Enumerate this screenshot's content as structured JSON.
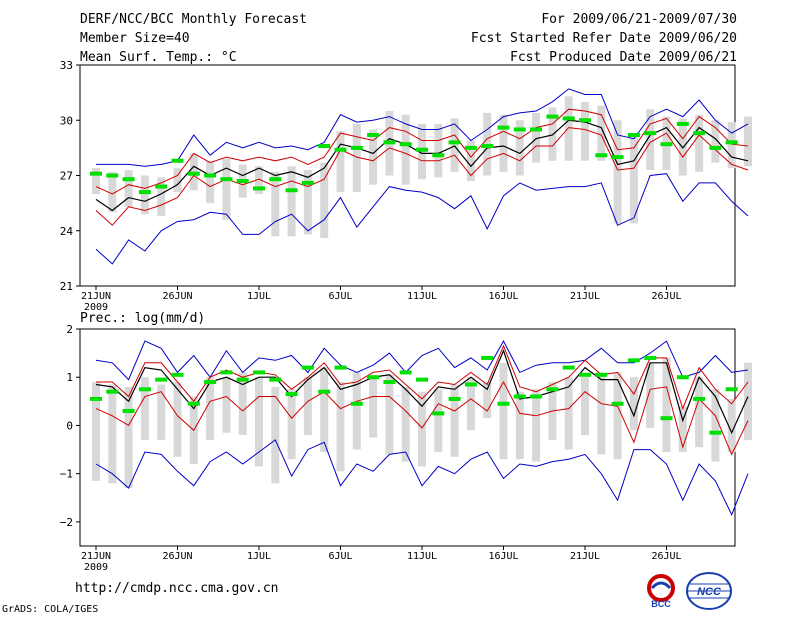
{
  "header": {
    "title": "DERF/NCC/BCC Monthly Forecast",
    "member_size": "Member Size=40",
    "variable": "Mean Surf. Temp.: °C",
    "period": "For 2009/06/21-2009/07/30",
    "started": "Fcst Started Refer Date 2009/06/20",
    "produced": "Fcst Produced Date 2009/06/21"
  },
  "footer": {
    "url": "http://cmdp.ncc.cma.gov.cn",
    "grads": "GrADS: COLA/IGES",
    "logo_bcc": "BCC",
    "logo_ncc": "NCC"
  },
  "colors": {
    "envelope": "#0000c8",
    "spread": "#d00000",
    "mean": "#000000",
    "bar": "#d8d8d8",
    "marker": "#00e000"
  },
  "chart_data": [
    {
      "type": "line",
      "title": "Mean Surf. Temp.: °C",
      "ylim": [
        21,
        33
      ],
      "yticks": [
        21,
        24,
        27,
        30,
        33
      ],
      "x_ticks": [
        {
          "day": 0,
          "label": "21JUN",
          "sub": "2009"
        },
        {
          "day": 5,
          "label": "26JUN"
        },
        {
          "day": 10,
          "label": "1JUL"
        },
        {
          "day": 15,
          "label": "6JUL"
        },
        {
          "day": 20,
          "label": "11JUL"
        },
        {
          "day": 25,
          "label": "16JUL"
        },
        {
          "day": 30,
          "label": "21JUL"
        },
        {
          "day": 35,
          "label": "26JUL"
        }
      ],
      "days": 40,
      "max": [
        27.6,
        27.6,
        27.6,
        27.5,
        27.6,
        27.8,
        29.2,
        28.1,
        28.8,
        28.5,
        28.8,
        28.5,
        28.6,
        28.4,
        28.8,
        30.3,
        29.9,
        30.0,
        30.2,
        29.8,
        29.5,
        29.5,
        29.8,
        28.9,
        29.5,
        30.2,
        30.4,
        30.5,
        31.0,
        31.7,
        31.4,
        31.4,
        29.2,
        29.0,
        30.2,
        30.6,
        30.2,
        31.1,
        30.0,
        29.3,
        29.8
      ],
      "upper": [
        26.4,
        26.0,
        26.5,
        26.3,
        26.6,
        27.0,
        28.2,
        27.7,
        28.0,
        27.8,
        28.0,
        27.8,
        28.0,
        27.6,
        28.0,
        29.3,
        29.1,
        28.9,
        29.6,
        29.4,
        28.9,
        28.9,
        29.2,
        28.0,
        29.0,
        29.4,
        29.0,
        29.6,
        29.8,
        30.6,
        30.5,
        30.3,
        28.4,
        28.5,
        29.8,
        30.1,
        29.0,
        30.2,
        29.6,
        28.7,
        28.6
      ],
      "mean": [
        25.7,
        25.1,
        25.8,
        25.6,
        26.0,
        26.5,
        27.5,
        27.0,
        27.4,
        27.0,
        27.4,
        27.0,
        27.2,
        26.9,
        27.4,
        28.7,
        28.5,
        28.2,
        29.0,
        28.7,
        28.2,
        28.2,
        28.6,
        27.5,
        28.5,
        28.6,
        28.2,
        29.0,
        29.2,
        30.0,
        29.9,
        29.6,
        27.6,
        27.8,
        29.2,
        29.6,
        28.5,
        29.6,
        29.0,
        28.0,
        27.8
      ],
      "lower": [
        25.1,
        24.3,
        25.3,
        25.1,
        25.4,
        25.8,
        27.0,
        26.4,
        26.8,
        26.5,
        26.8,
        26.4,
        26.7,
        26.4,
        26.8,
        28.4,
        28.0,
        27.8,
        28.5,
        28.2,
        27.8,
        27.8,
        28.1,
        27.0,
        27.9,
        28.2,
        27.8,
        28.6,
        28.6,
        29.6,
        29.5,
        29.2,
        27.3,
        27.4,
        28.8,
        29.3,
        28.0,
        29.2,
        28.4,
        27.6,
        27.3
      ],
      "min": [
        23.0,
        22.2,
        23.5,
        22.9,
        24.0,
        24.5,
        24.6,
        25.0,
        24.9,
        23.8,
        23.8,
        24.5,
        24.9,
        24.0,
        24.6,
        25.8,
        24.2,
        25.3,
        26.4,
        26.2,
        26.1,
        25.8,
        25.2,
        25.9,
        24.1,
        25.9,
        26.6,
        26.2,
        26.3,
        26.4,
        26.4,
        26.6,
        24.3,
        24.7,
        27.0,
        27.1,
        25.6,
        26.6,
        26.6,
        25.6,
        24.8
      ],
      "bar_hi": [
        27.4,
        27.2,
        27.3,
        27.0,
        26.9,
        27.4,
        28.2,
        27.8,
        27.9,
        27.6,
        27.5,
        27.2,
        27.5,
        27.3,
        27.7,
        29.4,
        29.8,
        29.5,
        30.5,
        30.3,
        29.8,
        29.8,
        30.1,
        28.9,
        30.4,
        30.3,
        30.0,
        30.4,
        30.7,
        31.3,
        31.0,
        30.8,
        30.0,
        29.2,
        30.6,
        30.2,
        30.1,
        30.3,
        30.0,
        29.9,
        30.2
      ],
      "bar_lo": [
        26.0,
        25.0,
        25.3,
        24.9,
        24.8,
        26.1,
        26.2,
        25.5,
        24.6,
        25.8,
        26.0,
        23.7,
        23.7,
        23.8,
        23.6,
        26.1,
        26.1,
        26.5,
        27.0,
        26.5,
        26.8,
        26.9,
        27.2,
        26.7,
        27.0,
        27.2,
        27.0,
        27.7,
        27.8,
        27.8,
        27.8,
        27.8,
        24.4,
        24.4,
        27.3,
        27.3,
        27.0,
        27.2,
        27.7,
        27.4,
        27.5
      ],
      "marker": [
        27.1,
        27.0,
        26.8,
        26.1,
        26.4,
        27.8,
        27.1,
        27.0,
        26.8,
        26.7,
        26.3,
        26.8,
        26.2,
        26.6,
        28.6,
        28.4,
        28.5,
        29.2,
        28.8,
        28.7,
        28.4,
        28.1,
        28.8,
        28.5,
        28.6,
        29.6,
        29.5,
        29.5,
        30.2,
        30.1,
        30.0,
        28.1,
        28.0,
        29.2,
        29.3,
        28.7,
        29.8,
        29.3,
        28.5,
        28.8
      ]
    },
    {
      "type": "line",
      "title": "Prec.: log(mm/d)",
      "ylim": [
        -2.5,
        2.0
      ],
      "yticks": [
        -2,
        -1,
        0,
        1,
        2
      ],
      "x_ticks": [
        {
          "day": 0,
          "label": "21JUN",
          "sub": "2009"
        },
        {
          "day": 5,
          "label": "26JUN"
        },
        {
          "day": 10,
          "label": "1JUL"
        },
        {
          "day": 15,
          "label": "6JUL"
        },
        {
          "day": 20,
          "label": "11JUL"
        },
        {
          "day": 25,
          "label": "16JUL"
        },
        {
          "day": 30,
          "label": "21JUL"
        },
        {
          "day": 35,
          "label": "26JUL"
        }
      ],
      "days": 40,
      "max": [
        1.35,
        1.3,
        0.95,
        1.75,
        1.6,
        1.1,
        1.45,
        1.0,
        1.55,
        1.1,
        1.4,
        1.35,
        1.45,
        1.1,
        1.6,
        1.25,
        1.1,
        1.25,
        1.5,
        1.1,
        1.45,
        1.6,
        1.2,
        1.4,
        1.15,
        1.75,
        1.1,
        1.25,
        1.3,
        1.3,
        1.35,
        1.6,
        1.3,
        1.3,
        1.5,
        1.75,
        1.0,
        1.1,
        1.45,
        1.1,
        1.15
      ],
      "upper": [
        0.9,
        0.9,
        0.6,
        1.3,
        1.3,
        0.9,
        0.5,
        1.0,
        1.15,
        1.0,
        1.1,
        1.05,
        0.75,
        1.0,
        1.3,
        0.85,
        0.9,
        1.1,
        1.15,
        0.85,
        0.55,
        0.9,
        0.85,
        1.1,
        0.85,
        1.65,
        0.8,
        0.7,
        0.85,
        1.0,
        1.35,
        1.05,
        1.1,
        0.65,
        1.4,
        1.4,
        0.35,
        1.2,
        0.75,
        0.45,
        0.9
      ],
      "mean": [
        0.85,
        0.8,
        0.5,
        1.2,
        1.15,
        0.75,
        0.35,
        0.9,
        1.0,
        0.85,
        1.0,
        1.0,
        0.6,
        0.95,
        1.2,
        0.75,
        0.85,
        1.0,
        1.05,
        0.75,
        0.4,
        0.8,
        0.75,
        1.0,
        0.75,
        1.55,
        0.55,
        0.6,
        0.7,
        0.8,
        1.2,
        0.95,
        0.95,
        0.2,
        1.3,
        1.3,
        0.1,
        1.0,
        0.6,
        -0.15,
        0.6
      ],
      "lower": [
        0.35,
        0.2,
        0.0,
        0.6,
        0.7,
        0.2,
        -0.1,
        0.5,
        0.6,
        0.3,
        0.6,
        0.6,
        0.15,
        0.5,
        0.7,
        0.35,
        0.5,
        0.6,
        0.6,
        0.3,
        -0.05,
        0.45,
        0.3,
        0.55,
        0.3,
        0.9,
        0.25,
        0.2,
        0.3,
        0.35,
        0.7,
        0.45,
        0.4,
        -0.35,
        0.75,
        0.8,
        -0.45,
        0.55,
        0.2,
        -0.6,
        0.1
      ],
      "min": [
        -0.8,
        -1.0,
        -1.3,
        -0.55,
        -0.6,
        -0.95,
        -1.25,
        -0.75,
        -0.55,
        -0.8,
        -0.55,
        -0.3,
        -1.05,
        -0.5,
        -0.35,
        -1.25,
        -0.8,
        -0.95,
        -0.6,
        -0.55,
        -1.25,
        -0.85,
        -1.0,
        -0.7,
        -0.55,
        -1.1,
        -0.8,
        -0.85,
        -0.75,
        -0.7,
        -0.6,
        -1.0,
        -1.55,
        -0.5,
        -0.5,
        -0.8,
        -1.55,
        -0.8,
        -1.15,
        -1.85,
        -1.0
      ],
      "bar_hi": [
        0.9,
        0.85,
        0.8,
        1.0,
        0.85,
        0.9,
        0.6,
        1.0,
        1.0,
        1.1,
        1.0,
        0.8,
        0.75,
        1.0,
        1.2,
        0.9,
        1.1,
        1.0,
        1.05,
        0.8,
        0.7,
        0.75,
        0.85,
        1.0,
        0.9,
        1.3,
        0.7,
        0.75,
        0.9,
        1.0,
        1.0,
        1.1,
        1.1,
        1.0,
        1.3,
        1.4,
        0.4,
        1.0,
        0.75,
        0.55,
        1.3
      ],
      "bar_lo": [
        -1.15,
        -1.2,
        -1.3,
        -0.3,
        -0.3,
        -0.65,
        -0.8,
        -0.3,
        -0.15,
        -0.2,
        -0.85,
        -1.2,
        -0.7,
        -0.2,
        -0.55,
        -0.95,
        -0.5,
        -0.25,
        -0.6,
        -0.75,
        -0.85,
        -0.55,
        -0.65,
        -0.1,
        0.15,
        -0.7,
        -0.7,
        -0.75,
        -0.3,
        -0.5,
        -0.2,
        -0.6,
        -0.7,
        -0.1,
        -0.05,
        -0.55,
        -0.55,
        -0.45,
        -0.75,
        -0.55,
        -0.3
      ],
      "marker": [
        0.55,
        0.7,
        0.3,
        0.75,
        0.95,
        1.05,
        0.45,
        0.9,
        1.1,
        0.95,
        1.1,
        0.95,
        0.65,
        1.2,
        0.7,
        1.2,
        0.45,
        1.0,
        0.9,
        1.1,
        0.95,
        0.25,
        0.55,
        0.85,
        1.4,
        0.45,
        0.6,
        0.6,
        0.75,
        1.2,
        1.05,
        1.05,
        0.45,
        1.35,
        1.4,
        0.15,
        1.0,
        0.55,
        -0.15,
        0.75
      ]
    }
  ]
}
